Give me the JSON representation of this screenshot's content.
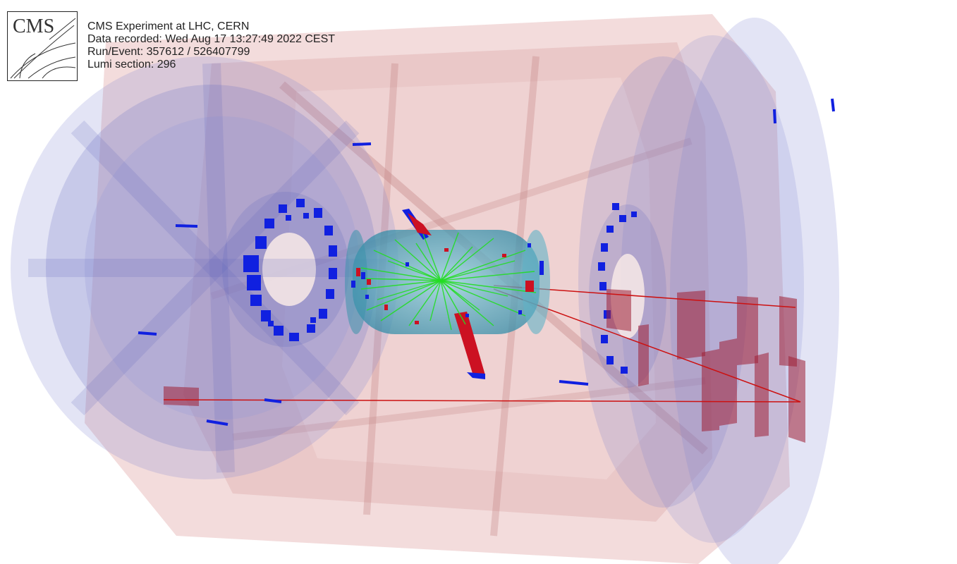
{
  "logo": {
    "text": "CMS"
  },
  "info": {
    "line1": "CMS Experiment at LHC, CERN",
    "line2": "Data recorded: Wed Aug 17 13:27:49 2022 CEST",
    "line3": "Run/Event: 357612 / 526407799",
    "line4": "Lumi section: 296"
  },
  "colors": {
    "muon_chamber": "#5a5fc8",
    "yoke": "#c98a8a",
    "tracker": "#4aa0b8",
    "tracks": "#22dd22",
    "muon_track": "#cc1111",
    "hit": "#1020e0"
  }
}
